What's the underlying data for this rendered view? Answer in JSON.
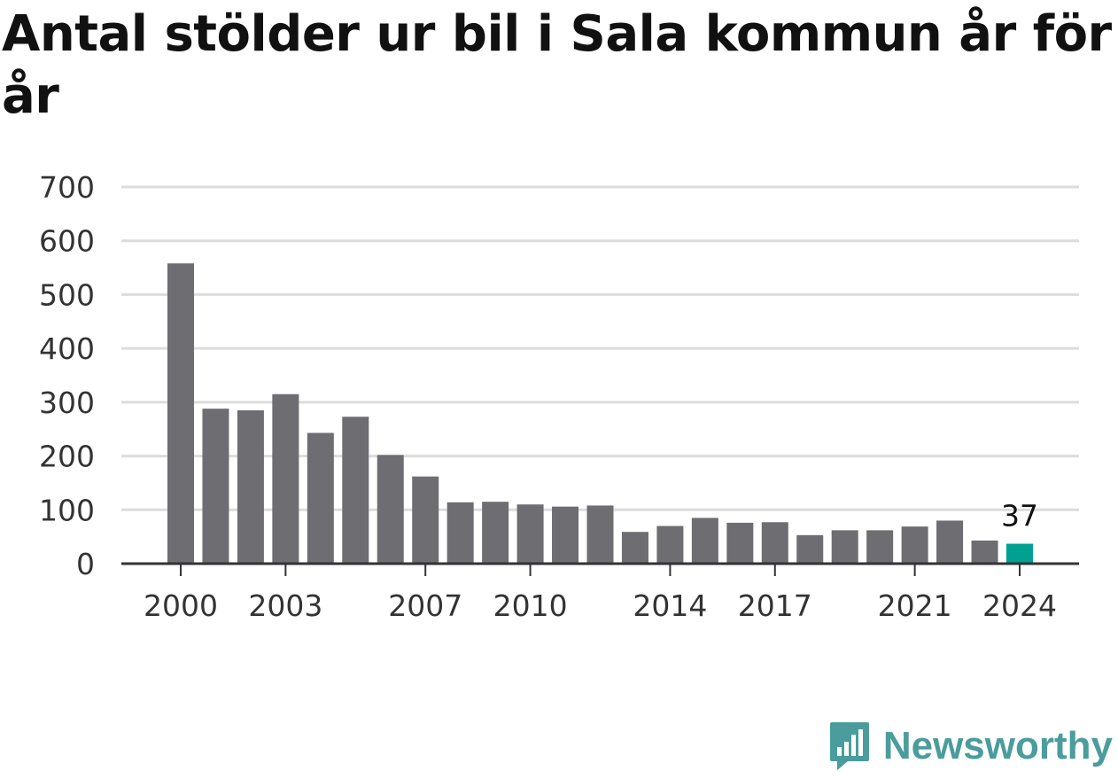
{
  "title": "Antal stölder ur bil i Sala kommun år för år",
  "brand": {
    "name": "Newsworthy",
    "color": "#4a9d9c",
    "icon": "bar-chart-logo-icon"
  },
  "colors": {
    "bar": "#6e6d72",
    "highlight": "#00a092",
    "grid": "#dcdcdc",
    "axis": "#333333"
  },
  "chart_data": {
    "type": "bar",
    "title": "Antal stölder ur bil i Sala kommun år för år",
    "xlabel": "",
    "ylabel": "",
    "ylim": [
      0,
      700
    ],
    "yticks": [
      0,
      100,
      200,
      300,
      400,
      500,
      600,
      700
    ],
    "xtick_labels": [
      "2000",
      "2003",
      "2007",
      "2010",
      "2014",
      "2017",
      "2021",
      "2024"
    ],
    "grid": true,
    "categories": [
      "2000",
      "2001",
      "2002",
      "2003",
      "2004",
      "2005",
      "2006",
      "2007",
      "2008",
      "2009",
      "2010",
      "2011",
      "2012",
      "2013",
      "2014",
      "2015",
      "2016",
      "2017",
      "2018",
      "2019",
      "2020",
      "2021",
      "2022",
      "2023",
      "2024"
    ],
    "values": [
      558,
      288,
      285,
      315,
      243,
      273,
      202,
      162,
      114,
      115,
      110,
      106,
      108,
      59,
      70,
      85,
      76,
      77,
      53,
      62,
      62,
      69,
      80,
      43,
      37
    ],
    "highlight_index": 24,
    "annotation": {
      "category": "2024",
      "text": "37"
    }
  }
}
